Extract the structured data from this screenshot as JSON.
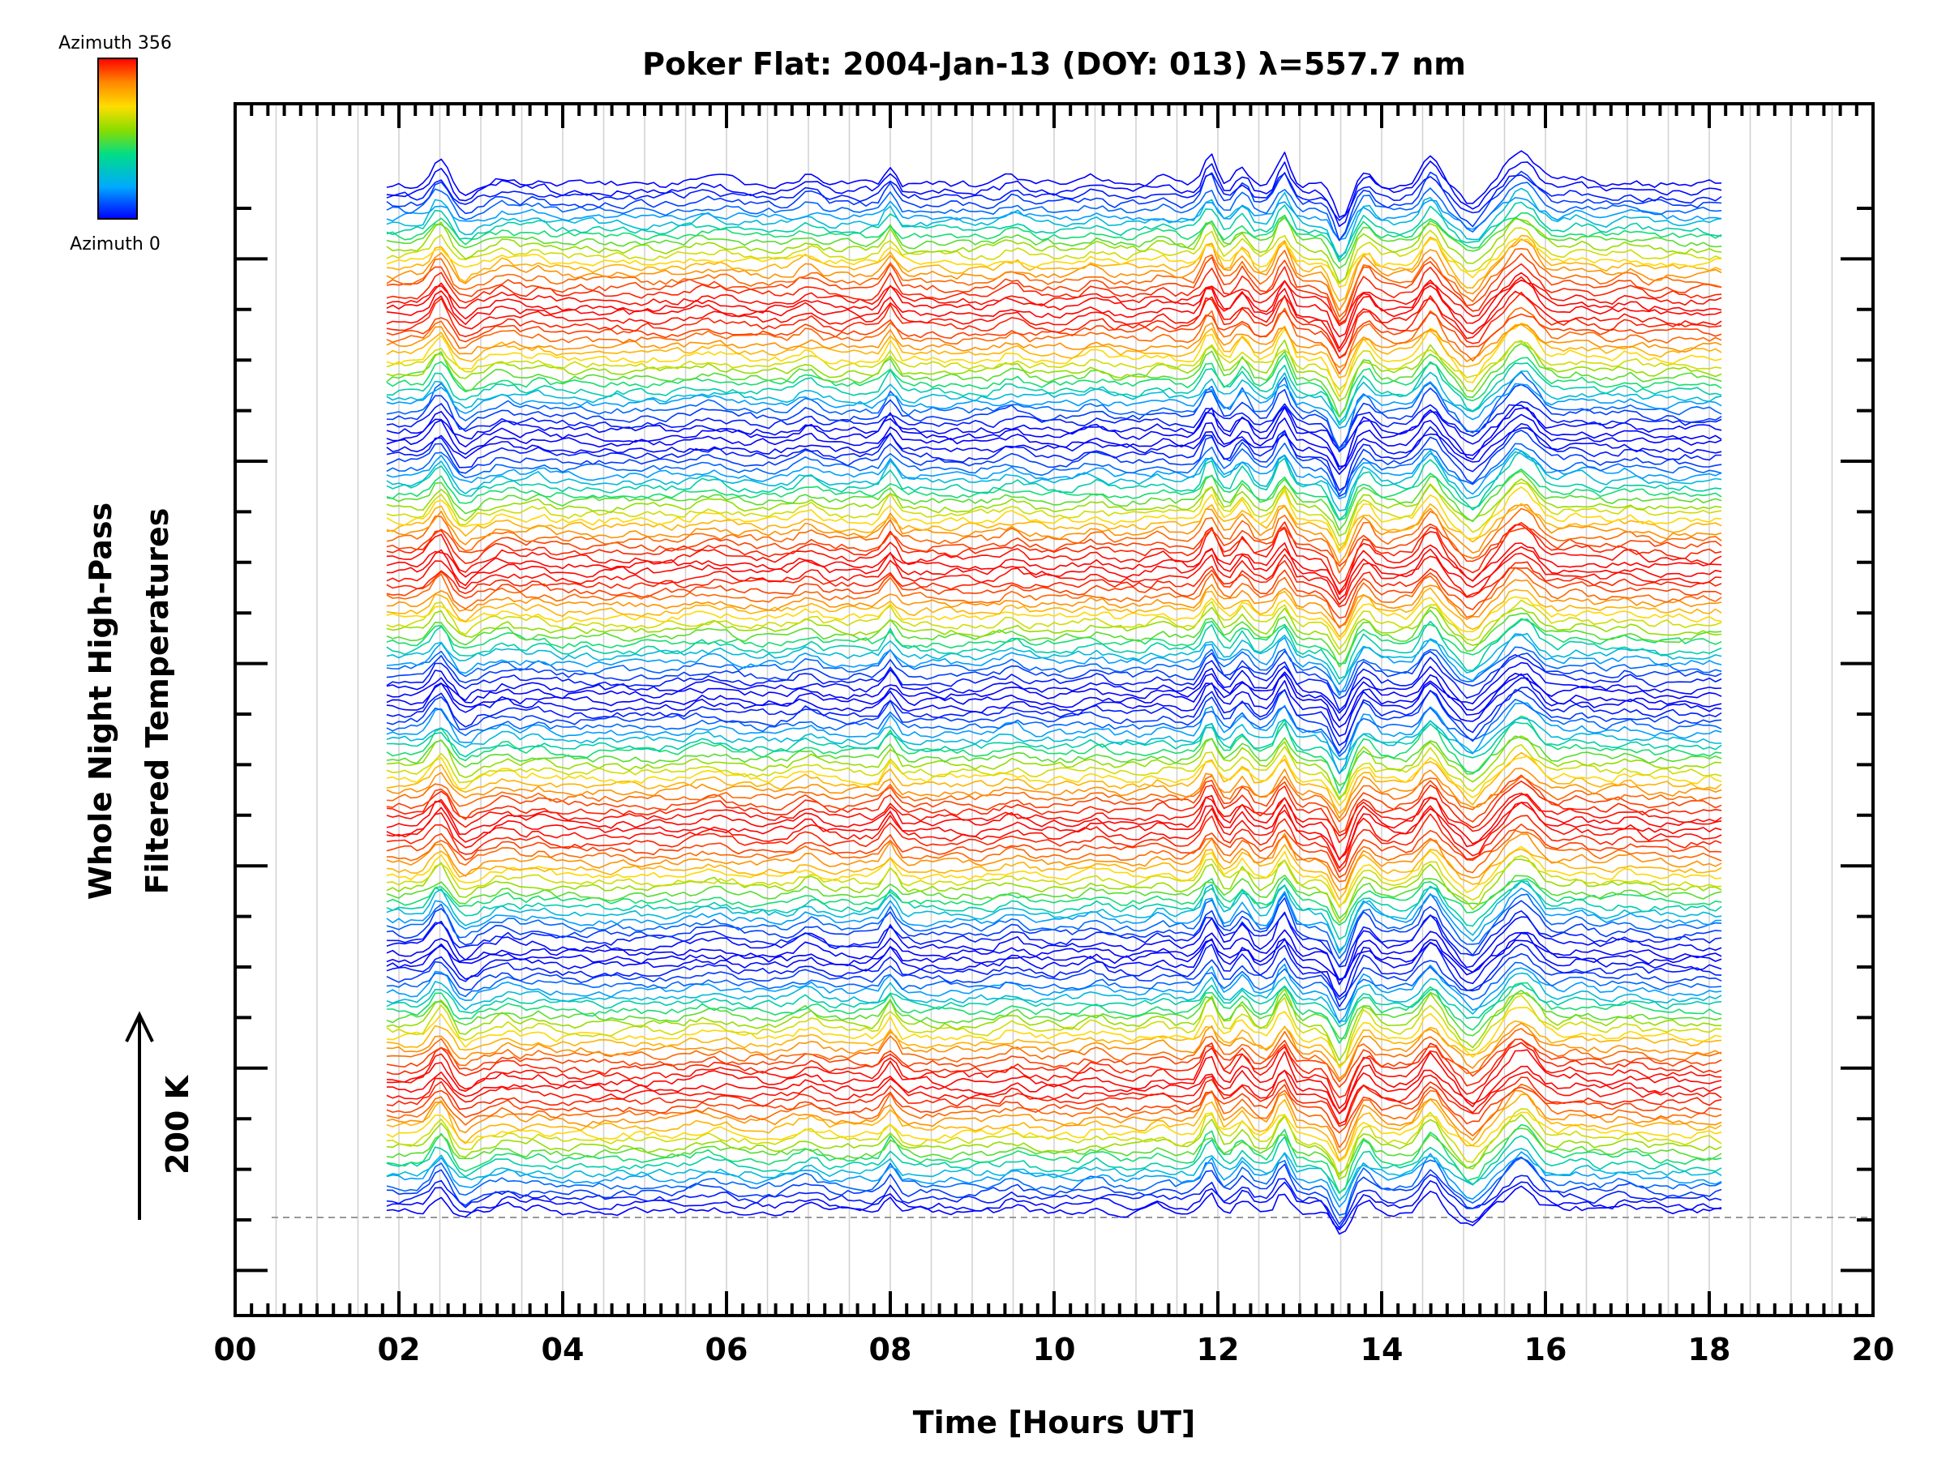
{
  "chart_data": {
    "type": "line",
    "title": "Poker Flat: 2004-Jan-13 (DOY: 013) λ=557.7 nm",
    "xlabel": "Time [Hours UT]",
    "ylabel_lines": [
      "Whole Night High-Pass",
      "Filtered Temperatures"
    ],
    "scale_label": "200 K",
    "xlim": [
      0,
      20
    ],
    "x_tick_labels": [
      "00",
      "02",
      "04",
      "06",
      "08",
      "10",
      "12",
      "14",
      "16",
      "18",
      "20"
    ],
    "x_tick_values": [
      0,
      2,
      4,
      6,
      8,
      10,
      12,
      14,
      16,
      18,
      20
    ],
    "data_time_range": [
      1.85,
      18.15
    ],
    "series_count": 160,
    "series_note": "Stacked high-pass filtered temperature traces, one per azimuth bin (0 to 356 deg), each vertically offset; blank lines repeat in four groups",
    "features": [
      {
        "time": 2.5,
        "type": "peak"
      },
      {
        "time": 8.0,
        "type": "peak"
      },
      {
        "time": 11.9,
        "type": "peak"
      },
      {
        "time": 12.8,
        "type": "peak"
      },
      {
        "time": 13.5,
        "type": "dip"
      },
      {
        "time": 14.6,
        "type": "peak"
      },
      {
        "time": 15.7,
        "type": "peak"
      }
    ],
    "colorbar": {
      "top_label": "Azimuth 356",
      "bottom_label": "Azimuth 0",
      "min": 0,
      "max": 356,
      "colors": [
        "#0000ff",
        "#00aaff",
        "#00dd88",
        "#88dd00",
        "#ffdd00",
        "#ff8800",
        "#ff0000"
      ]
    },
    "colors": {
      "frame": "#000000",
      "gridlines": "#d0d0d0",
      "baseline": "#999999"
    }
  }
}
